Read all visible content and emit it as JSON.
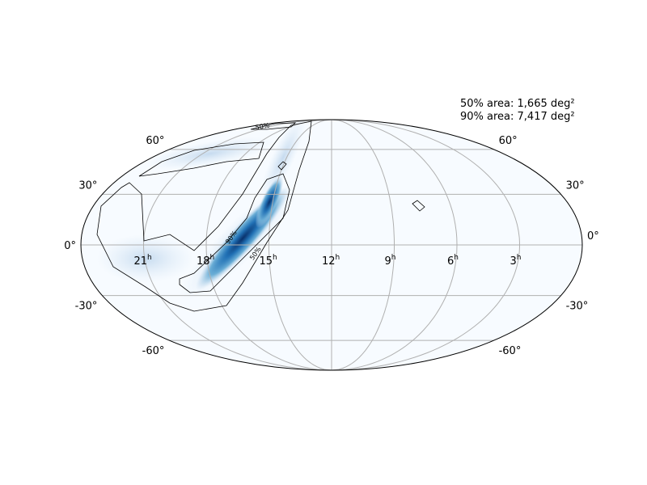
{
  "annotations": [
    "50% area: 1,665 deg²",
    "90% area: 7,417 deg²"
  ],
  "contour_labels": [
    "50%",
    "90%",
    "50%"
  ],
  "latitudes": [
    {
      "value": 60,
      "label": "60°"
    },
    {
      "value": 30,
      "label": "30°"
    },
    {
      "value": 0,
      "label": "0°"
    },
    {
      "value": -30,
      "label": "-30°"
    },
    {
      "value": -60,
      "label": "-60°"
    }
  ],
  "right_ascensions": [
    {
      "value": 21,
      "label": "21",
      "unit": "h"
    },
    {
      "value": 18,
      "label": "18",
      "unit": "h"
    },
    {
      "value": 15,
      "label": "15",
      "unit": "h"
    },
    {
      "value": 12,
      "label": "12",
      "unit": "h"
    },
    {
      "value": 9,
      "label": "9",
      "unit": "h"
    },
    {
      "value": 6,
      "label": "6",
      "unit": "h"
    },
    {
      "value": 3,
      "label": "3",
      "unit": "h"
    }
  ]
}
